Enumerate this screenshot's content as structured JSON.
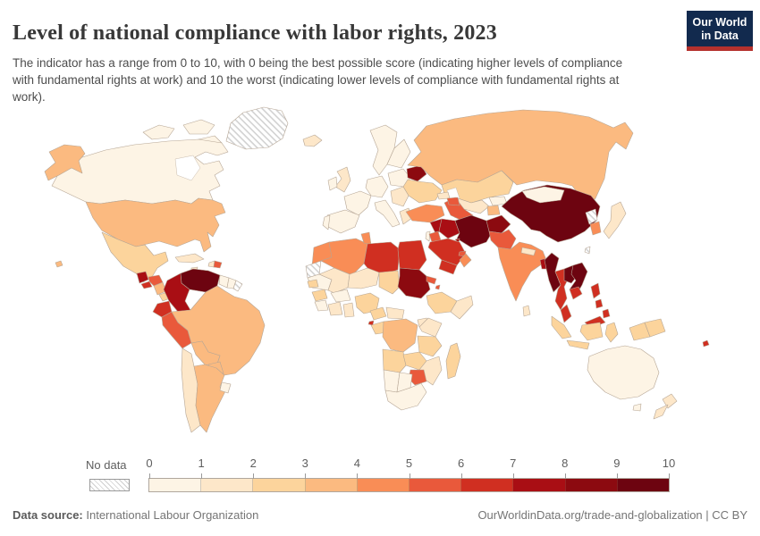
{
  "header": {
    "title": "Level of national compliance with labor rights, 2023",
    "subtitle": "The indicator has a range from 0 to 10, with 0 being the best possible score (indicating higher levels of compliance with fundamental rights at work) and 10 the worst (indicating lower levels of compliance with fundamental rights at work).",
    "logo": {
      "line1": "Our World",
      "line2": "in Data",
      "bg": "#122a4e",
      "accent": "#b5312d"
    }
  },
  "legend": {
    "no_data_label": "No data",
    "ticks": [
      "0",
      "1",
      "2",
      "3",
      "4",
      "5",
      "6",
      "7",
      "8",
      "9",
      "10"
    ],
    "bin_ranges": [
      "0-1",
      "1-2",
      "2-3",
      "3-4",
      "4-5",
      "5-6",
      "6-7",
      "7-8",
      "8-9",
      "9-10"
    ],
    "bin_colors": [
      "#fdf4e5",
      "#fde7c9",
      "#fcd49c",
      "#fbba80",
      "#f98d56",
      "#e9593b",
      "#d02f21",
      "#a90e14",
      "#8c0a10",
      "#6d0410"
    ]
  },
  "footer": {
    "source_label": "Data source:",
    "source_value": "International Labour Organization",
    "attribution": "OurWorldinData.org/trade-and-globalization | CC BY"
  },
  "chart_data": {
    "type": "choropleth_map",
    "title": "Level of national compliance with labor rights",
    "year": 2023,
    "scale": {
      "min": 0,
      "max": 10,
      "note": "0 = best compliance, 10 = worst compliance; bin N maps to value range bin_ranges[N]"
    },
    "countries": [
      {
        "name": "Canada",
        "bin": 0
      },
      {
        "name": "United States",
        "bin": 3
      },
      {
        "name": "Mexico",
        "bin": 2
      },
      {
        "name": "Guatemala",
        "bin": 7
      },
      {
        "name": "El Salvador",
        "bin": 6
      },
      {
        "name": "Honduras",
        "bin": 5
      },
      {
        "name": "Nicaragua",
        "bin": 3
      },
      {
        "name": "Costa Rica",
        "bin": 2
      },
      {
        "name": "Panama",
        "bin": 2
      },
      {
        "name": "Cuba",
        "bin": 1
      },
      {
        "name": "Haiti",
        "bin": 1
      },
      {
        "name": "Dominican Republic",
        "bin": 5
      },
      {
        "name": "Jamaica",
        "bin": 1
      },
      {
        "name": "Venezuela",
        "bin": 9
      },
      {
        "name": "Colombia",
        "bin": 7
      },
      {
        "name": "Ecuador",
        "bin": 6
      },
      {
        "name": "Peru",
        "bin": 5
      },
      {
        "name": "Brazil",
        "bin": 3
      },
      {
        "name": "Bolivia",
        "bin": 3
      },
      {
        "name": "Paraguay",
        "bin": 3
      },
      {
        "name": "Chile",
        "bin": 1
      },
      {
        "name": "Argentina",
        "bin": 3
      },
      {
        "name": "Uruguay",
        "bin": 0
      },
      {
        "name": "Guyana",
        "bin": 0
      },
      {
        "name": "Suriname",
        "bin": 0
      },
      {
        "name": "French Guiana",
        "bin": null
      },
      {
        "name": "Greenland",
        "bin": null
      },
      {
        "name": "Iceland",
        "bin": 1
      },
      {
        "name": "United Kingdom",
        "bin": 1
      },
      {
        "name": "Ireland",
        "bin": 0
      },
      {
        "name": "France",
        "bin": 0
      },
      {
        "name": "Spain",
        "bin": 0
      },
      {
        "name": "Portugal",
        "bin": 0
      },
      {
        "name": "Germany",
        "bin": 0
      },
      {
        "name": "Italy",
        "bin": 0
      },
      {
        "name": "Poland",
        "bin": 0
      },
      {
        "name": "Norway",
        "bin": 0
      },
      {
        "name": "Sweden",
        "bin": 0
      },
      {
        "name": "Finland",
        "bin": 0
      },
      {
        "name": "Greece",
        "bin": 1
      },
      {
        "name": "Romania",
        "bin": 1
      },
      {
        "name": "Belarus",
        "bin": 8
      },
      {
        "name": "Ukraine",
        "bin": 2
      },
      {
        "name": "Russia",
        "bin": 3
      },
      {
        "name": "Kazakhstan",
        "bin": 2
      },
      {
        "name": "Uzbekistan",
        "bin": 1
      },
      {
        "name": "Turkmenistan",
        "bin": 5
      },
      {
        "name": "Kyrgyzstan",
        "bin": 0
      },
      {
        "name": "Tajikistan",
        "bin": 3
      },
      {
        "name": "Georgia",
        "bin": 1
      },
      {
        "name": "Azerbaijan",
        "bin": 5
      },
      {
        "name": "Turkey",
        "bin": 4
      },
      {
        "name": "Syria",
        "bin": 7
      },
      {
        "name": "Iraq",
        "bin": 7
      },
      {
        "name": "Iran",
        "bin": 9
      },
      {
        "name": "Israel",
        "bin": 0
      },
      {
        "name": "Jordan",
        "bin": 5
      },
      {
        "name": "Saudi Arabia",
        "bin": 6
      },
      {
        "name": "Yemen",
        "bin": 6
      },
      {
        "name": "Oman",
        "bin": 4
      },
      {
        "name": "Kuwait",
        "bin": 7
      },
      {
        "name": "United Arab Emirates",
        "bin": 5
      },
      {
        "name": "Afghanistan",
        "bin": 8
      },
      {
        "name": "Pakistan",
        "bin": 5
      },
      {
        "name": "India",
        "bin": 4
      },
      {
        "name": "Nepal",
        "bin": 1
      },
      {
        "name": "Bangladesh",
        "bin": 7
      },
      {
        "name": "Sri Lanka",
        "bin": 1
      },
      {
        "name": "China",
        "bin": 9
      },
      {
        "name": "Mongolia",
        "bin": 0
      },
      {
        "name": "North Korea",
        "bin": null
      },
      {
        "name": "South Korea",
        "bin": 4
      },
      {
        "name": "Japan",
        "bin": 1
      },
      {
        "name": "Taiwan",
        "bin": null
      },
      {
        "name": "Myanmar",
        "bin": 9
      },
      {
        "name": "Thailand",
        "bin": 6
      },
      {
        "name": "Laos",
        "bin": 9
      },
      {
        "name": "Vietnam",
        "bin": 9
      },
      {
        "name": "Cambodia",
        "bin": 6
      },
      {
        "name": "Malaysia",
        "bin": 6
      },
      {
        "name": "Indonesia",
        "bin": 2
      },
      {
        "name": "Philippines",
        "bin": 6
      },
      {
        "name": "Papua New Guinea",
        "bin": 2
      },
      {
        "name": "Australia",
        "bin": 0
      },
      {
        "name": "New Zealand",
        "bin": 1
      },
      {
        "name": "Fiji",
        "bin": 6
      },
      {
        "name": "Morocco",
        "bin": 4
      },
      {
        "name": "Western Sahara",
        "bin": null
      },
      {
        "name": "Algeria",
        "bin": 4
      },
      {
        "name": "Tunisia",
        "bin": 4
      },
      {
        "name": "Libya",
        "bin": 6
      },
      {
        "name": "Egypt",
        "bin": 6
      },
      {
        "name": "Mauritania",
        "bin": 0
      },
      {
        "name": "Mali",
        "bin": 1
      },
      {
        "name": "Niger",
        "bin": 1
      },
      {
        "name": "Chad",
        "bin": 2
      },
      {
        "name": "Sudan",
        "bin": 8
      },
      {
        "name": "Eritrea",
        "bin": 5
      },
      {
        "name": "Djibouti",
        "bin": 5
      },
      {
        "name": "Ethiopia",
        "bin": 2
      },
      {
        "name": "Somalia",
        "bin": 1
      },
      {
        "name": "Senegal",
        "bin": 2
      },
      {
        "name": "Guinea",
        "bin": 2
      },
      {
        "name": "Sierra Leone",
        "bin": 0
      },
      {
        "name": "Cote d'Ivoire",
        "bin": 1
      },
      {
        "name": "Ghana",
        "bin": 1
      },
      {
        "name": "Burkina Faso",
        "bin": 0
      },
      {
        "name": "Nigeria",
        "bin": 2
      },
      {
        "name": "Cameroon",
        "bin": 2
      },
      {
        "name": "Central African Republic",
        "bin": 1
      },
      {
        "name": "Equatorial Guinea",
        "bin": 6
      },
      {
        "name": "Gabon",
        "bin": 2
      },
      {
        "name": "DR Congo",
        "bin": 3
      },
      {
        "name": "Uganda",
        "bin": 1
      },
      {
        "name": "Kenya",
        "bin": 1
      },
      {
        "name": "Tanzania",
        "bin": 2
      },
      {
        "name": "Angola",
        "bin": 2
      },
      {
        "name": "Zambia",
        "bin": 2
      },
      {
        "name": "Mozambique",
        "bin": 1
      },
      {
        "name": "Zimbabwe",
        "bin": 5
      },
      {
        "name": "Namibia",
        "bin": 0
      },
      {
        "name": "Botswana",
        "bin": 0
      },
      {
        "name": "South Africa",
        "bin": 0
      },
      {
        "name": "Madagascar",
        "bin": 2
      }
    ]
  }
}
